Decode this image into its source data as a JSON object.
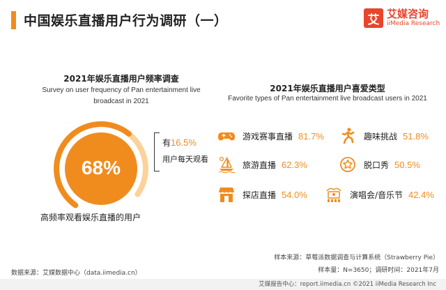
{
  "header": {
    "title": "中国娱乐直播用户行为调研（一）"
  },
  "logo": {
    "mark": "艾",
    "cn": "艾媒咨询",
    "en": "iiMedia Research"
  },
  "left_panel": {
    "title": "2021年娱乐直播用户频率调查",
    "subtitle_line1": "Survey on user frequency of Pan entertainment live",
    "subtitle_line2": "broadcast in 2021",
    "big_pct": "68%",
    "daily_prefix": "有",
    "daily_pct": "16.5%",
    "daily_suffix": "用户每天观看",
    "caption": "高频率观看娱乐直播的用户"
  },
  "right_panel": {
    "title": "2021年娱乐直播用户喜爱类型",
    "subtitle": "Favorite types of Pan entertainment live broadcast users in 2021"
  },
  "chart_data": [
    {
      "type": "pie",
      "title": "2021年娱乐直播用户频率调查",
      "subtitle": "Survey on user frequency of Pan entertainment live broadcast in 2021",
      "slices": [
        {
          "label": "高频率观看娱乐直播的用户",
          "value": 68
        }
      ],
      "annotation": {
        "label": "用户每天观看",
        "value": 16.5
      }
    },
    {
      "type": "table",
      "title": "2021年娱乐直播用户喜爱类型",
      "subtitle": "Favorite types of Pan entertainment live broadcast users in 2021",
      "categories": [
        "游戏赛事直播",
        "趣味挑战",
        "旅游直播",
        "脱口秀",
        "探店直播",
        "演唱会/音乐节"
      ],
      "values": [
        81.7,
        51.8,
        62.3,
        50.5,
        54.0,
        42.4
      ],
      "display": [
        "81.7%",
        "51.8%",
        "62.3%",
        "50.5%",
        "54.0%",
        "42.4%"
      ],
      "icons": [
        "gamepad-icon",
        "running-person-icon",
        "sailboat-icon",
        "star-badge-icon",
        "storefront-icon",
        "concert-stage-icon"
      ]
    }
  ],
  "source": {
    "sample_source": "样本来源：草莓派数据调查与计算系统（Strawberry Pie）",
    "sample_info": "样本量：N=3650；调研时间：2021年7月",
    "data_source": "数据来源：艾媒数据中心（data.iimedia.cn）",
    "footer": "艾媒报告中心：report.iimedia.cn   ©2021  iiMedia Research  Inc"
  },
  "colors": {
    "accent": "#f08c1e",
    "accent_light": "#fbd29a",
    "logo": "#e8452c"
  }
}
